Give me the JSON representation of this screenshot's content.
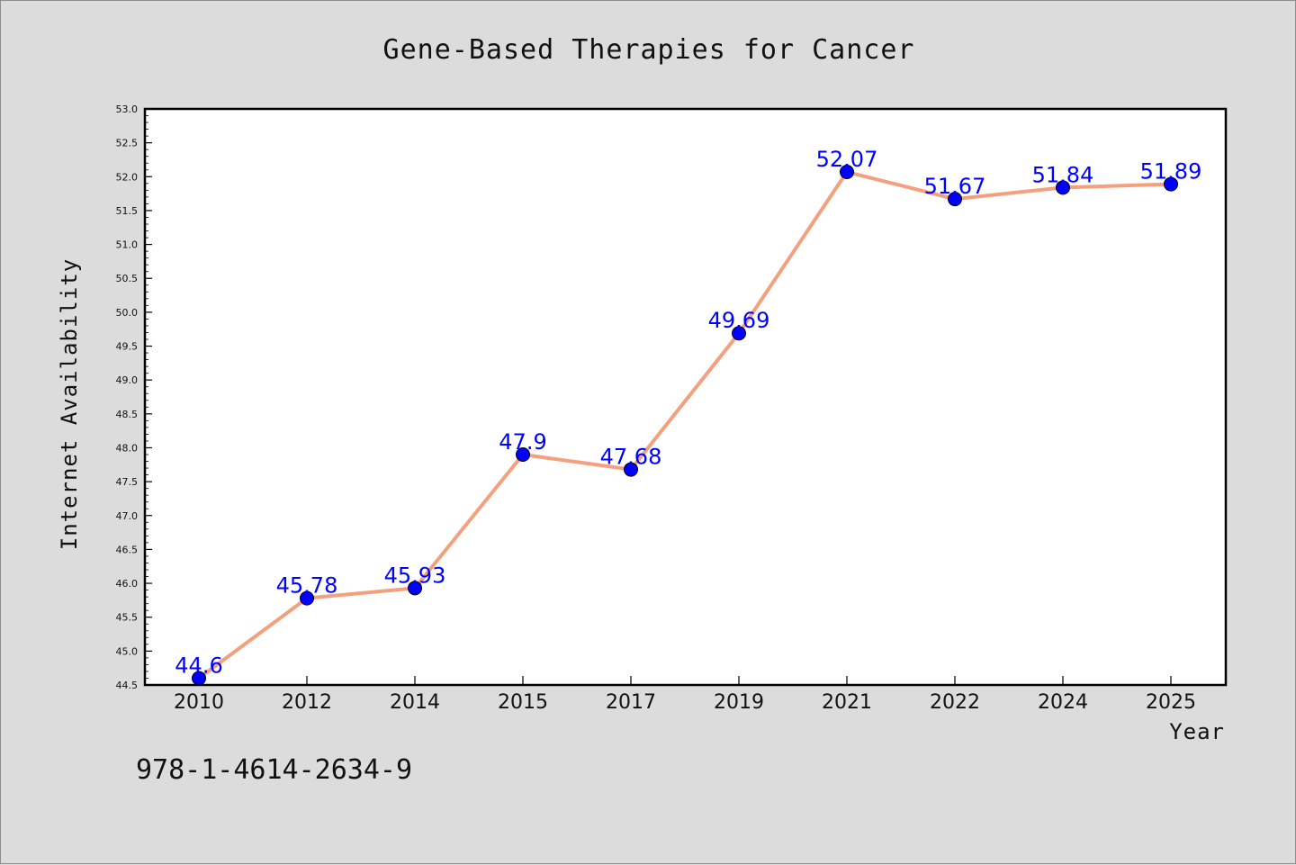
{
  "chart_data": {
    "type": "line",
    "title": "Gene-Based Therapies for Cancer",
    "xlabel": "Year",
    "ylabel": "Internet Availability",
    "categories": [
      "2010",
      "2012",
      "2014",
      "2015",
      "2017",
      "2019",
      "2021",
      "2022",
      "2024",
      "2025"
    ],
    "values": [
      44.6,
      45.78,
      45.93,
      47.9,
      47.68,
      49.69,
      52.07,
      51.67,
      51.84,
      51.89
    ],
    "data_labels": [
      "44.6",
      "45.78",
      "45.93",
      "47.9",
      "47.68",
      "49.69",
      "52.07",
      "51.67",
      "51.84",
      "51.89"
    ],
    "ylim": [
      44.5,
      53.0
    ],
    "ytick_step": 0.5,
    "grid": false,
    "legend": "none",
    "line_color": "#f4a07e",
    "marker_color": "#0000ff",
    "label_color": "#0000ff"
  },
  "annotation": "978-1-4614-2634-9"
}
